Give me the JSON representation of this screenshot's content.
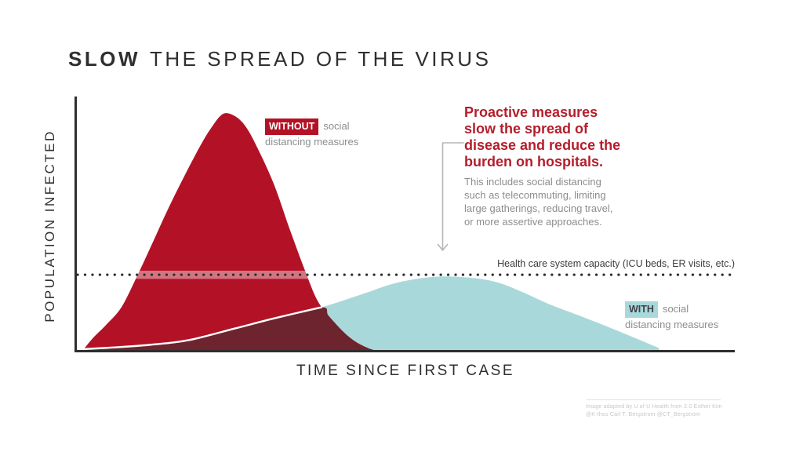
{
  "title": {
    "emphasis": "SLOW",
    "rest": "THE SPREAD OF THE VIRUS"
  },
  "axes": {
    "x_label": "TIME SINCE FIRST CASE",
    "y_label": "POPULATION INFECTED"
  },
  "labels": {
    "without": {
      "tag": "WITHOUT",
      "suffix": "social",
      "line2": "distancing measures"
    },
    "with": {
      "tag": "WITH",
      "suffix": "social",
      "line2": "distancing measures"
    },
    "capacity": "Health care system capacity (ICU beds, ER visits, etc.)"
  },
  "callout": {
    "heading_lines": [
      "Proactive measures",
      "slow the spread of",
      "disease and reduce the",
      "burden on hospitals."
    ],
    "body_lines": [
      "This includes social distancing",
      "such as telecommuting, limiting",
      "large gatherings, reducing travel,",
      "or more assertive approaches."
    ]
  },
  "credit": {
    "line1": "Image adapted by U of U Health from 2.0 Esther Kim",
    "line2": "@K-thos Carl T. Bergstrom @CT_Bergstrom"
  },
  "colors": {
    "without_fill": "#b31226",
    "with_fill": "#a9d8da",
    "overlap_fill": "#6e242e",
    "accent_text": "#b41e2c",
    "dark_text": "#2f2f2f",
    "muted_text": "#8b8d90",
    "capacity_text": "#3b3d40",
    "with_tag_text": "#3f4245",
    "axis": "#2e2e2e",
    "dots": "#2e2e2e",
    "arrow": "#b4b6b8",
    "band_highlight": "rgba(255,255,255,0.42)",
    "credit_text": "#c3c7cb",
    "credit_rule": "#dfe2e5"
  },
  "chart_data": {
    "type": "area",
    "title": "SLOW THE SPREAD OF THE VIRUS",
    "xlabel": "TIME SINCE FIRST CASE",
    "ylabel": "POPULATION INFECTED",
    "x_range": [
      0,
      100
    ],
    "y_range": [
      0,
      100
    ],
    "ticks": "none (conceptual unitless axes)",
    "grid": false,
    "legend_position": "labels placed beside each curve",
    "series": [
      {
        "id": "without",
        "name": "WITHOUT social distancing measures",
        "color": "#b31226",
        "x": [
          1.3,
          2.7,
          4.7,
          7.1,
          9.5,
          11.8,
          14.2,
          16.6,
          18.9,
          20.7,
          22.5,
          24.3,
          26.0,
          27.8,
          30.2,
          32.5,
          34.9,
          36.7,
          38.5,
          40.8,
          42.6,
          44.4,
          45.3
        ],
        "y": [
          0,
          4.4,
          9.6,
          16.7,
          29.0,
          41.8,
          55.3,
          67.8,
          79.1,
          86.8,
          92.3,
          91.4,
          87.1,
          78.5,
          64.8,
          47.9,
          31.1,
          19.8,
          13.3,
          6.9,
          3.2,
          0.8,
          0
        ]
      },
      {
        "id": "with",
        "name": "WITH social distancing measures",
        "color": "#a9d8da",
        "x": [
          0.4,
          5.3,
          11.3,
          17.2,
          24.3,
          30.3,
          37.4,
          43.3,
          48.7,
          54.0,
          58.8,
          63.5,
          67.7,
          71.9,
          76.6,
          81.4,
          84.9,
          88.5
        ],
        "y": [
          0.2,
          0.9,
          2.0,
          3.8,
          8.4,
          12.4,
          16.7,
          21.6,
          26.2,
          28.5,
          28.5,
          26.8,
          22.8,
          17.9,
          13.3,
          8.4,
          4.7,
          0.8
        ]
      }
    ],
    "overlap": {
      "color": "#6e242e",
      "intersection_x": 37.4,
      "note": "region under both curves"
    },
    "capacity_line": {
      "label": "Health care system capacity (ICU beds, ER visits, etc.)",
      "y": 29.4,
      "style": "dotted"
    }
  }
}
